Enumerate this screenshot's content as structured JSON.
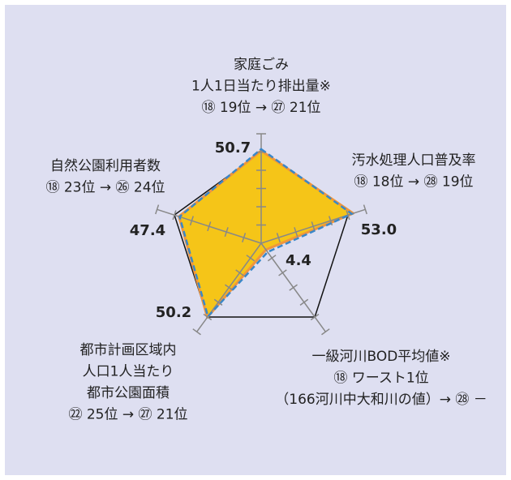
{
  "chart_data": {
    "type": "radar",
    "axes": [
      {
        "label": [
          "家庭ごみ",
          "1人1日当たり排出量※",
          "⑱ 19位 → ㉗ 21位"
        ]
      },
      {
        "label": [
          "汚水処理人口普及率",
          "⑱ 18位 → ㉘ 19位"
        ]
      },
      {
        "label": [
          "一級河川BOD平均値※",
          "⑱ ワースト1位",
          "（166河川中大和川の値）→ ㉘ －"
        ]
      },
      {
        "label": [
          "都市計画区域内",
          "人口1人当たり",
          "都市公園面積",
          "㉒ 25位 → ㉗ 21位"
        ]
      },
      {
        "label": [
          "自然公園利用者数",
          "⑱ 23位 → ㉖ 24位"
        ]
      }
    ],
    "rlim": [
      0,
      60
    ],
    "rticks": [
      10,
      20,
      30,
      40,
      50,
      60
    ],
    "reference": 50,
    "series": [
      {
        "color": "#f5c518",
        "edge": "#f0963c",
        "values": [
          50.7,
          53.0,
          4.4,
          50.2,
          47.4
        ],
        "value_labels": [
          "50.7",
          "53.0",
          "4.4",
          "50.2",
          "47.4"
        ]
      },
      {
        "color": "#3a87c8",
        "values": [
          51.6,
          52.2,
          6.0,
          49.6,
          47.0
        ],
        "dashed": true
      }
    ]
  }
}
